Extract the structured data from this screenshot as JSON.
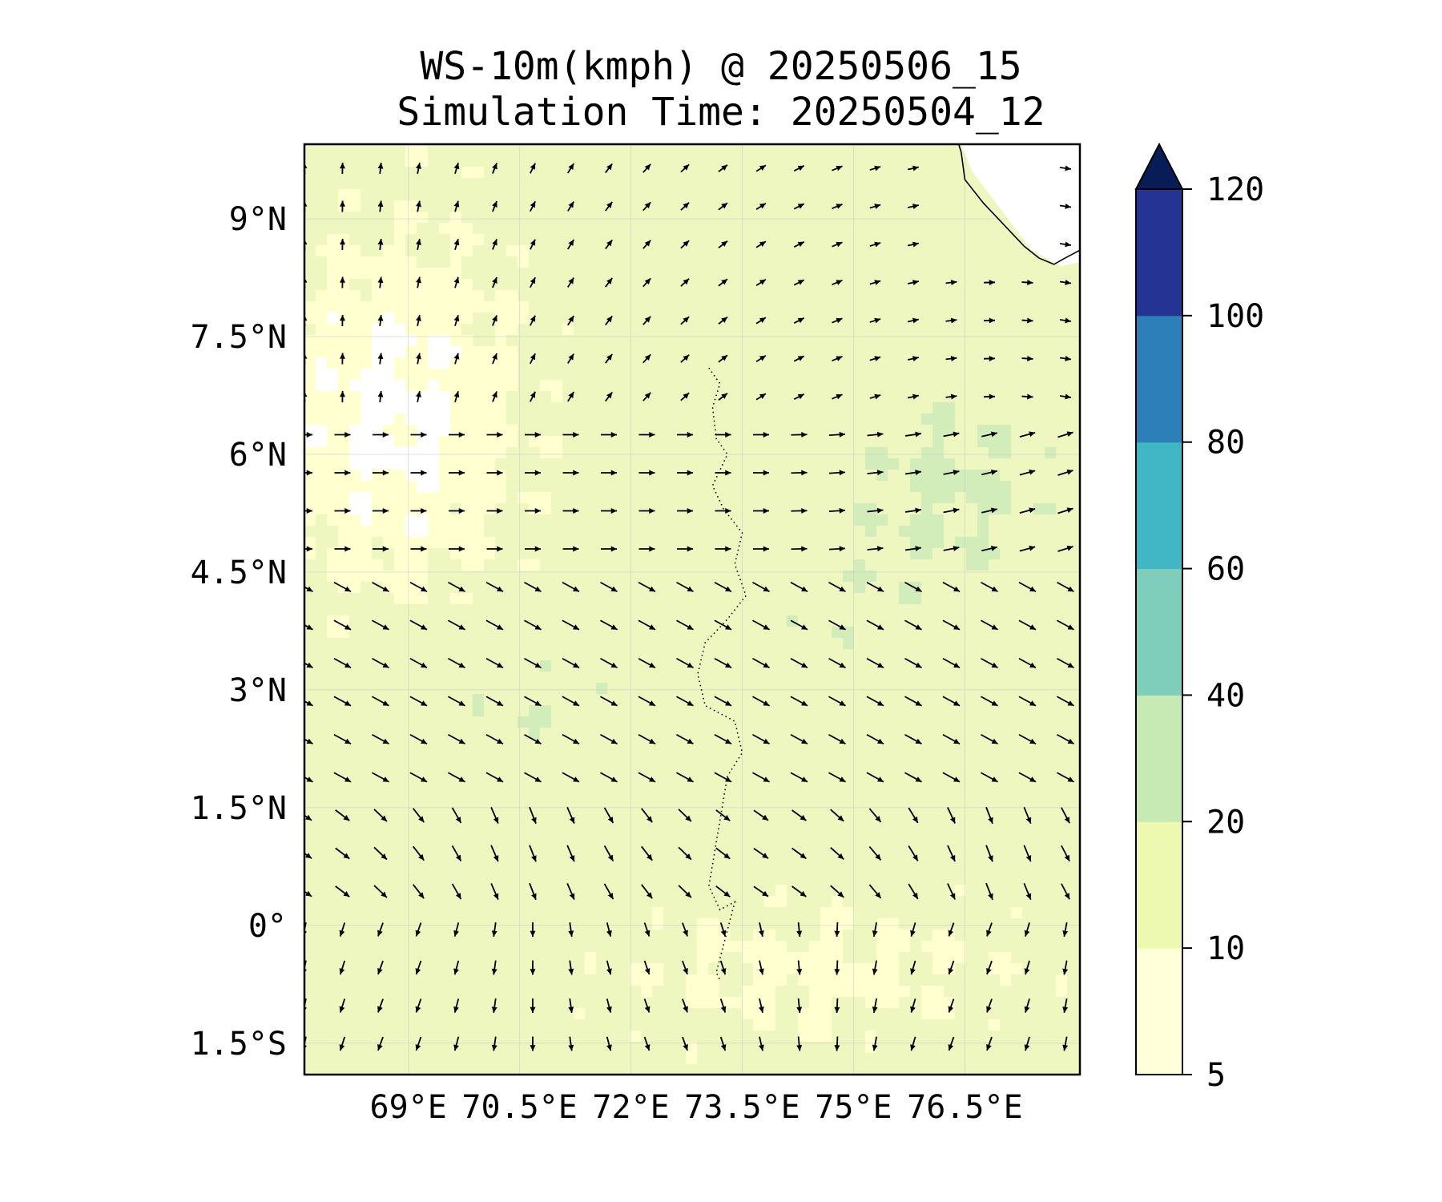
{
  "title": {
    "line1": "WS-10m(kmph) @ 20250506_15",
    "line2": "Simulation Time: 20250504_12"
  },
  "map": {
    "lon_range": [
      67.6,
      78.05
    ],
    "lat_range": [
      -1.9,
      9.95
    ],
    "x_ticks": [
      {
        "value": 69.0,
        "label": "69°E"
      },
      {
        "value": 70.5,
        "label": "70.5°E"
      },
      {
        "value": 72.0,
        "label": "72°E"
      },
      {
        "value": 73.5,
        "label": "73.5°E"
      },
      {
        "value": 75.0,
        "label": "75°E"
      },
      {
        "value": 76.5,
        "label": "76.5°E"
      }
    ],
    "y_ticks": [
      {
        "value": 9.0,
        "label": "9°N"
      },
      {
        "value": 7.5,
        "label": "7.5°N"
      },
      {
        "value": 6.0,
        "label": "6°N"
      },
      {
        "value": 4.5,
        "label": "4.5°N"
      },
      {
        "value": 3.0,
        "label": "3°N"
      },
      {
        "value": 1.5,
        "label": "1.5°N"
      },
      {
        "value": 0.0,
        "label": "0°"
      },
      {
        "value": -1.5,
        "label": "1.5°S"
      }
    ],
    "gridlines": true,
    "field_colors": {
      "calm": "#ffffff",
      "low": "#ffffd0",
      "moderate": "#eef7c0",
      "fresh": "#d2ecba"
    },
    "coastline_color": "#000000",
    "arrow_color": "#000000"
  },
  "colorbar": {
    "levels": [
      5,
      10,
      20,
      40,
      60,
      80,
      100,
      120
    ],
    "labels": [
      "5",
      "10",
      "20",
      "40",
      "60",
      "80",
      "100",
      "120"
    ],
    "colors": [
      "#ffffd9",
      "#edf8b1",
      "#c7e9b4",
      "#7fcdbb",
      "#41b6c4",
      "#2c7fb8",
      "#253494",
      "#081d58"
    ],
    "extend": "max"
  }
}
